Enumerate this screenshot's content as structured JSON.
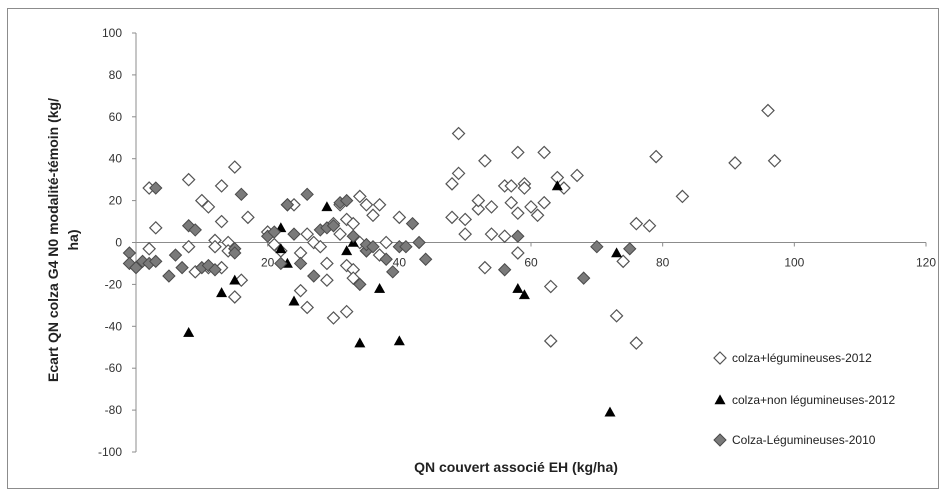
{
  "chart_data": {
    "type": "scatter",
    "xlabel": "QN couvert associé EH (kg/ha)",
    "ylabel": "Ecart QN colza G4 N0 modalité-témoin (kg/ha)",
    "ylabel_lines": [
      "Ecart QN colza G4 N0 modalité-témoin (kg/",
      "ha)"
    ],
    "xlim": [
      0,
      120
    ],
    "ylim": [
      -100,
      100
    ],
    "xticks": [
      20,
      40,
      60,
      80,
      100,
      120
    ],
    "yticks": [
      -100,
      -80,
      -60,
      -40,
      -20,
      0,
      20,
      40,
      60,
      80,
      100
    ],
    "legend_position": "bottom-right",
    "series": [
      {
        "name": "colza+légumineuses-2012",
        "marker": "diamond-open",
        "color": "#555555",
        "points": [
          [
            2,
            26
          ],
          [
            2,
            -3
          ],
          [
            3,
            7
          ],
          [
            8,
            30
          ],
          [
            8,
            -2
          ],
          [
            9,
            -14
          ],
          [
            10,
            20
          ],
          [
            11,
            17
          ],
          [
            11,
            -12
          ],
          [
            12,
            1
          ],
          [
            12,
            -2
          ],
          [
            13,
            10
          ],
          [
            13,
            27
          ],
          [
            13,
            -12
          ],
          [
            14,
            0
          ],
          [
            14,
            -4
          ],
          [
            15,
            36
          ],
          [
            15,
            -26
          ],
          [
            16,
            -18
          ],
          [
            17,
            12
          ],
          [
            20,
            5
          ],
          [
            21,
            -1
          ],
          [
            22,
            -4
          ],
          [
            23,
            18
          ],
          [
            24,
            18
          ],
          [
            25,
            -5
          ],
          [
            25,
            -23
          ],
          [
            26,
            4
          ],
          [
            26,
            -31
          ],
          [
            27,
            0
          ],
          [
            28,
            -2
          ],
          [
            29,
            -10
          ],
          [
            29,
            -18
          ],
          [
            30,
            -36
          ],
          [
            30,
            9
          ],
          [
            31,
            18
          ],
          [
            31,
            4
          ],
          [
            32,
            -11
          ],
          [
            32,
            11
          ],
          [
            32,
            -33
          ],
          [
            33,
            -13
          ],
          [
            33,
            9
          ],
          [
            33,
            -17
          ],
          [
            34,
            22
          ],
          [
            34,
            0
          ],
          [
            35,
            18
          ],
          [
            35,
            -4
          ],
          [
            36,
            13
          ],
          [
            37,
            18
          ],
          [
            37,
            -6
          ],
          [
            38,
            0
          ],
          [
            40,
            12
          ],
          [
            48,
            28
          ],
          [
            48,
            12
          ],
          [
            49,
            52
          ],
          [
            49,
            33
          ],
          [
            50,
            11
          ],
          [
            50,
            4
          ],
          [
            52,
            16
          ],
          [
            52,
            20
          ],
          [
            53,
            39
          ],
          [
            53,
            -12
          ],
          [
            54,
            4
          ],
          [
            54,
            17
          ],
          [
            56,
            27
          ],
          [
            56,
            3
          ],
          [
            57,
            19
          ],
          [
            57,
            27
          ],
          [
            58,
            43
          ],
          [
            58,
            14
          ],
          [
            58,
            -5
          ],
          [
            59,
            28
          ],
          [
            59,
            26
          ],
          [
            60,
            17
          ],
          [
            61,
            13
          ],
          [
            62,
            43
          ],
          [
            62,
            19
          ],
          [
            63,
            -21
          ],
          [
            63,
            -47
          ],
          [
            64,
            31
          ],
          [
            65,
            26
          ],
          [
            67,
            32
          ],
          [
            73,
            -35
          ],
          [
            74,
            -9
          ],
          [
            76,
            9
          ],
          [
            76,
            -48
          ],
          [
            78,
            8
          ],
          [
            79,
            41
          ],
          [
            83,
            22
          ],
          [
            91,
            38
          ],
          [
            96,
            63
          ],
          [
            97,
            39
          ]
        ]
      },
      {
        "name": "colza+non légumineuses-2012",
        "marker": "triangle",
        "color": "#000000",
        "points": [
          [
            8,
            -43
          ],
          [
            13,
            -24
          ],
          [
            15,
            -18
          ],
          [
            22,
            -3
          ],
          [
            22,
            7
          ],
          [
            23,
            -10
          ],
          [
            24,
            -28
          ],
          [
            29,
            17
          ],
          [
            32,
            -4
          ],
          [
            33,
            0
          ],
          [
            34,
            -48
          ],
          [
            37,
            -22
          ],
          [
            40,
            -47
          ],
          [
            58,
            -22
          ],
          [
            59,
            -25
          ],
          [
            64,
            27
          ],
          [
            72,
            -81
          ],
          [
            73,
            -5
          ]
        ]
      },
      {
        "name": "Colza-Légumineuses-2010",
        "marker": "diamond-filled",
        "color": "#7a7a7a",
        "points": [
          [
            -1,
            -5
          ],
          [
            -1,
            -10
          ],
          [
            0,
            -12
          ],
          [
            1,
            -9
          ],
          [
            2,
            -10
          ],
          [
            3,
            26
          ],
          [
            3,
            -9
          ],
          [
            5,
            -16
          ],
          [
            6,
            -6
          ],
          [
            7,
            -12
          ],
          [
            8,
            8
          ],
          [
            9,
            6
          ],
          [
            10,
            -12
          ],
          [
            11,
            -11
          ],
          [
            12,
            -13
          ],
          [
            15,
            -3
          ],
          [
            15,
            -5
          ],
          [
            16,
            23
          ],
          [
            20,
            3
          ],
          [
            21,
            5
          ],
          [
            22,
            -10
          ],
          [
            23,
            18
          ],
          [
            24,
            4
          ],
          [
            25,
            -10
          ],
          [
            26,
            23
          ],
          [
            27,
            -16
          ],
          [
            28,
            6
          ],
          [
            29,
            7
          ],
          [
            30,
            8
          ],
          [
            31,
            19
          ],
          [
            32,
            20
          ],
          [
            33,
            3
          ],
          [
            34,
            -20
          ],
          [
            35,
            -4
          ],
          [
            35,
            -1
          ],
          [
            36,
            -2
          ],
          [
            38,
            -8
          ],
          [
            39,
            -14
          ],
          [
            40,
            -2
          ],
          [
            41,
            -2
          ],
          [
            42,
            9
          ],
          [
            43,
            0
          ],
          [
            44,
            -8
          ],
          [
            56,
            -13
          ],
          [
            58,
            3
          ],
          [
            68,
            -17
          ],
          [
            70,
            -2
          ],
          [
            75,
            -3
          ]
        ]
      }
    ]
  }
}
